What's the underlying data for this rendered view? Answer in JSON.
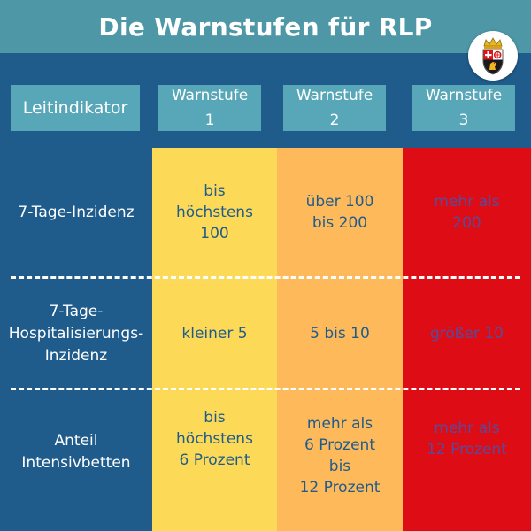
{
  "title": "Die Warnstufen für RLP",
  "header": {
    "lead": "Leitindikator",
    "levels": [
      {
        "label": "Warnstufe",
        "number": "1"
      },
      {
        "label": "Warnstufe",
        "number": "2"
      },
      {
        "label": "Warnstufe",
        "number": "3"
      }
    ]
  },
  "rows": [
    {
      "label": "7-Tage-Inzidenz",
      "cells": [
        "bis\nhöchstens\n100",
        "über 100\nbis 200",
        "mehr als\n200"
      ]
    },
    {
      "label": "7-Tage-\nHospitalisierungs-\nInzidenz",
      "cells": [
        "kleiner 5",
        "5 bis 10",
        "größer 10"
      ]
    },
    {
      "label": "Anteil\nIntensivbetten",
      "cells": [
        "bis\nhöchstens\n6 Prozent",
        "mehr als\n6 Prozent\nbis\n12 Prozent",
        "mehr als\n12 Prozent"
      ]
    }
  ],
  "colors": {
    "background": "#1f5c8c",
    "title_bar": "#4d97a6",
    "header_box": "#58a7b8",
    "level1": "#fcd957",
    "level2": "#fdb95a",
    "level3": "#de0d15"
  },
  "icons": {
    "coat_of_arms": "rlp-coat-of-arms-icon"
  }
}
